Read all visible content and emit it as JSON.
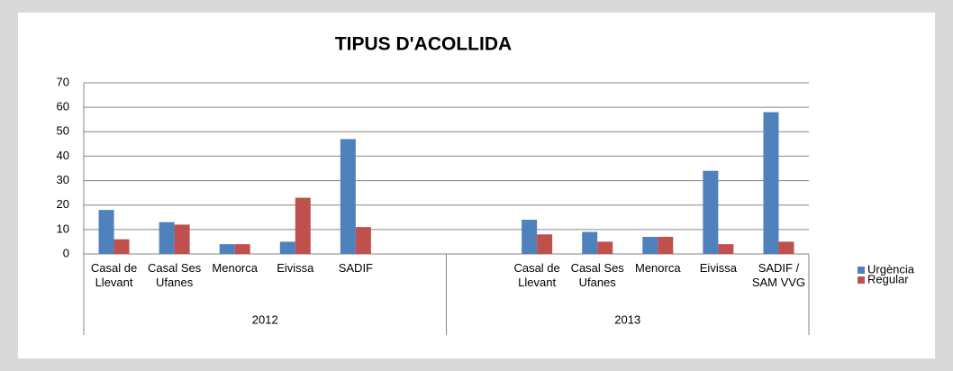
{
  "chart_data": {
    "type": "bar",
    "title": "TIPUS D'ACOLLIDA",
    "categories": [
      "Casal de Llevant",
      "Casal Ses Ufanes",
      "Menorca",
      "Eivissa",
      "SADIF",
      null,
      null,
      "Casal de Llevant",
      "Casal Ses Ufanes",
      "Menorca",
      "Eivissa",
      "SADIF / SAM VVG"
    ],
    "groups": [
      "2012",
      "2013"
    ],
    "series": [
      {
        "name": "Urgència",
        "color": "#4f81bd",
        "values": [
          18,
          13,
          4,
          5,
          47,
          null,
          null,
          14,
          9,
          7,
          34,
          58
        ]
      },
      {
        "name": "Regular",
        "color": "#c0504d",
        "values": [
          6,
          12,
          4,
          23,
          11,
          null,
          null,
          8,
          5,
          7,
          4,
          5
        ]
      }
    ],
    "ylim": [
      0,
      70
    ],
    "yticks": [
      0,
      10,
      20,
      30,
      40,
      50,
      60,
      70
    ],
    "grid": true,
    "legend": "right"
  }
}
